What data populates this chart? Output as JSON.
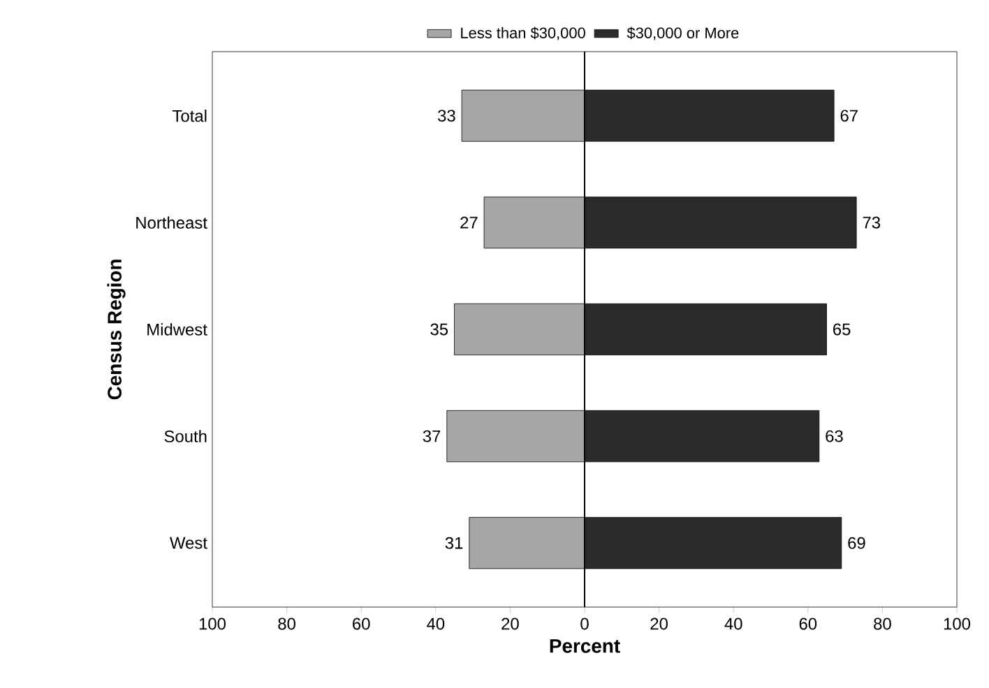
{
  "chart_data": {
    "type": "bar",
    "orientation": "horizontal",
    "xlabel": "Percent",
    "ylabel": "Census Region",
    "categories": [
      "Total",
      "Northeast",
      "Midwest",
      "South",
      "West"
    ],
    "series": [
      {
        "name": "Less than $30,000",
        "color": "#a6a6a6",
        "base": [
          -33,
          -27,
          -35,
          -37,
          -31
        ],
        "values": [
          33,
          27,
          35,
          37,
          31
        ]
      },
      {
        "name": "$30,000 or More",
        "color": "#2b2b2b",
        "values": [
          67,
          73,
          65,
          63,
          69
        ]
      }
    ],
    "data_labels": true,
    "xlim": [
      -100,
      100
    ],
    "xticks": [
      {
        "value": -100,
        "label": "100"
      },
      {
        "value": -80,
        "label": "80"
      },
      {
        "value": -60,
        "label": "60"
      },
      {
        "value": -40,
        "label": "40"
      },
      {
        "value": -20,
        "label": "20"
      },
      0,
      20,
      40,
      60,
      80,
      100
    ],
    "ref_lines": [
      {
        "axis": "x",
        "value": 0
      }
    ],
    "legend": "top"
  }
}
